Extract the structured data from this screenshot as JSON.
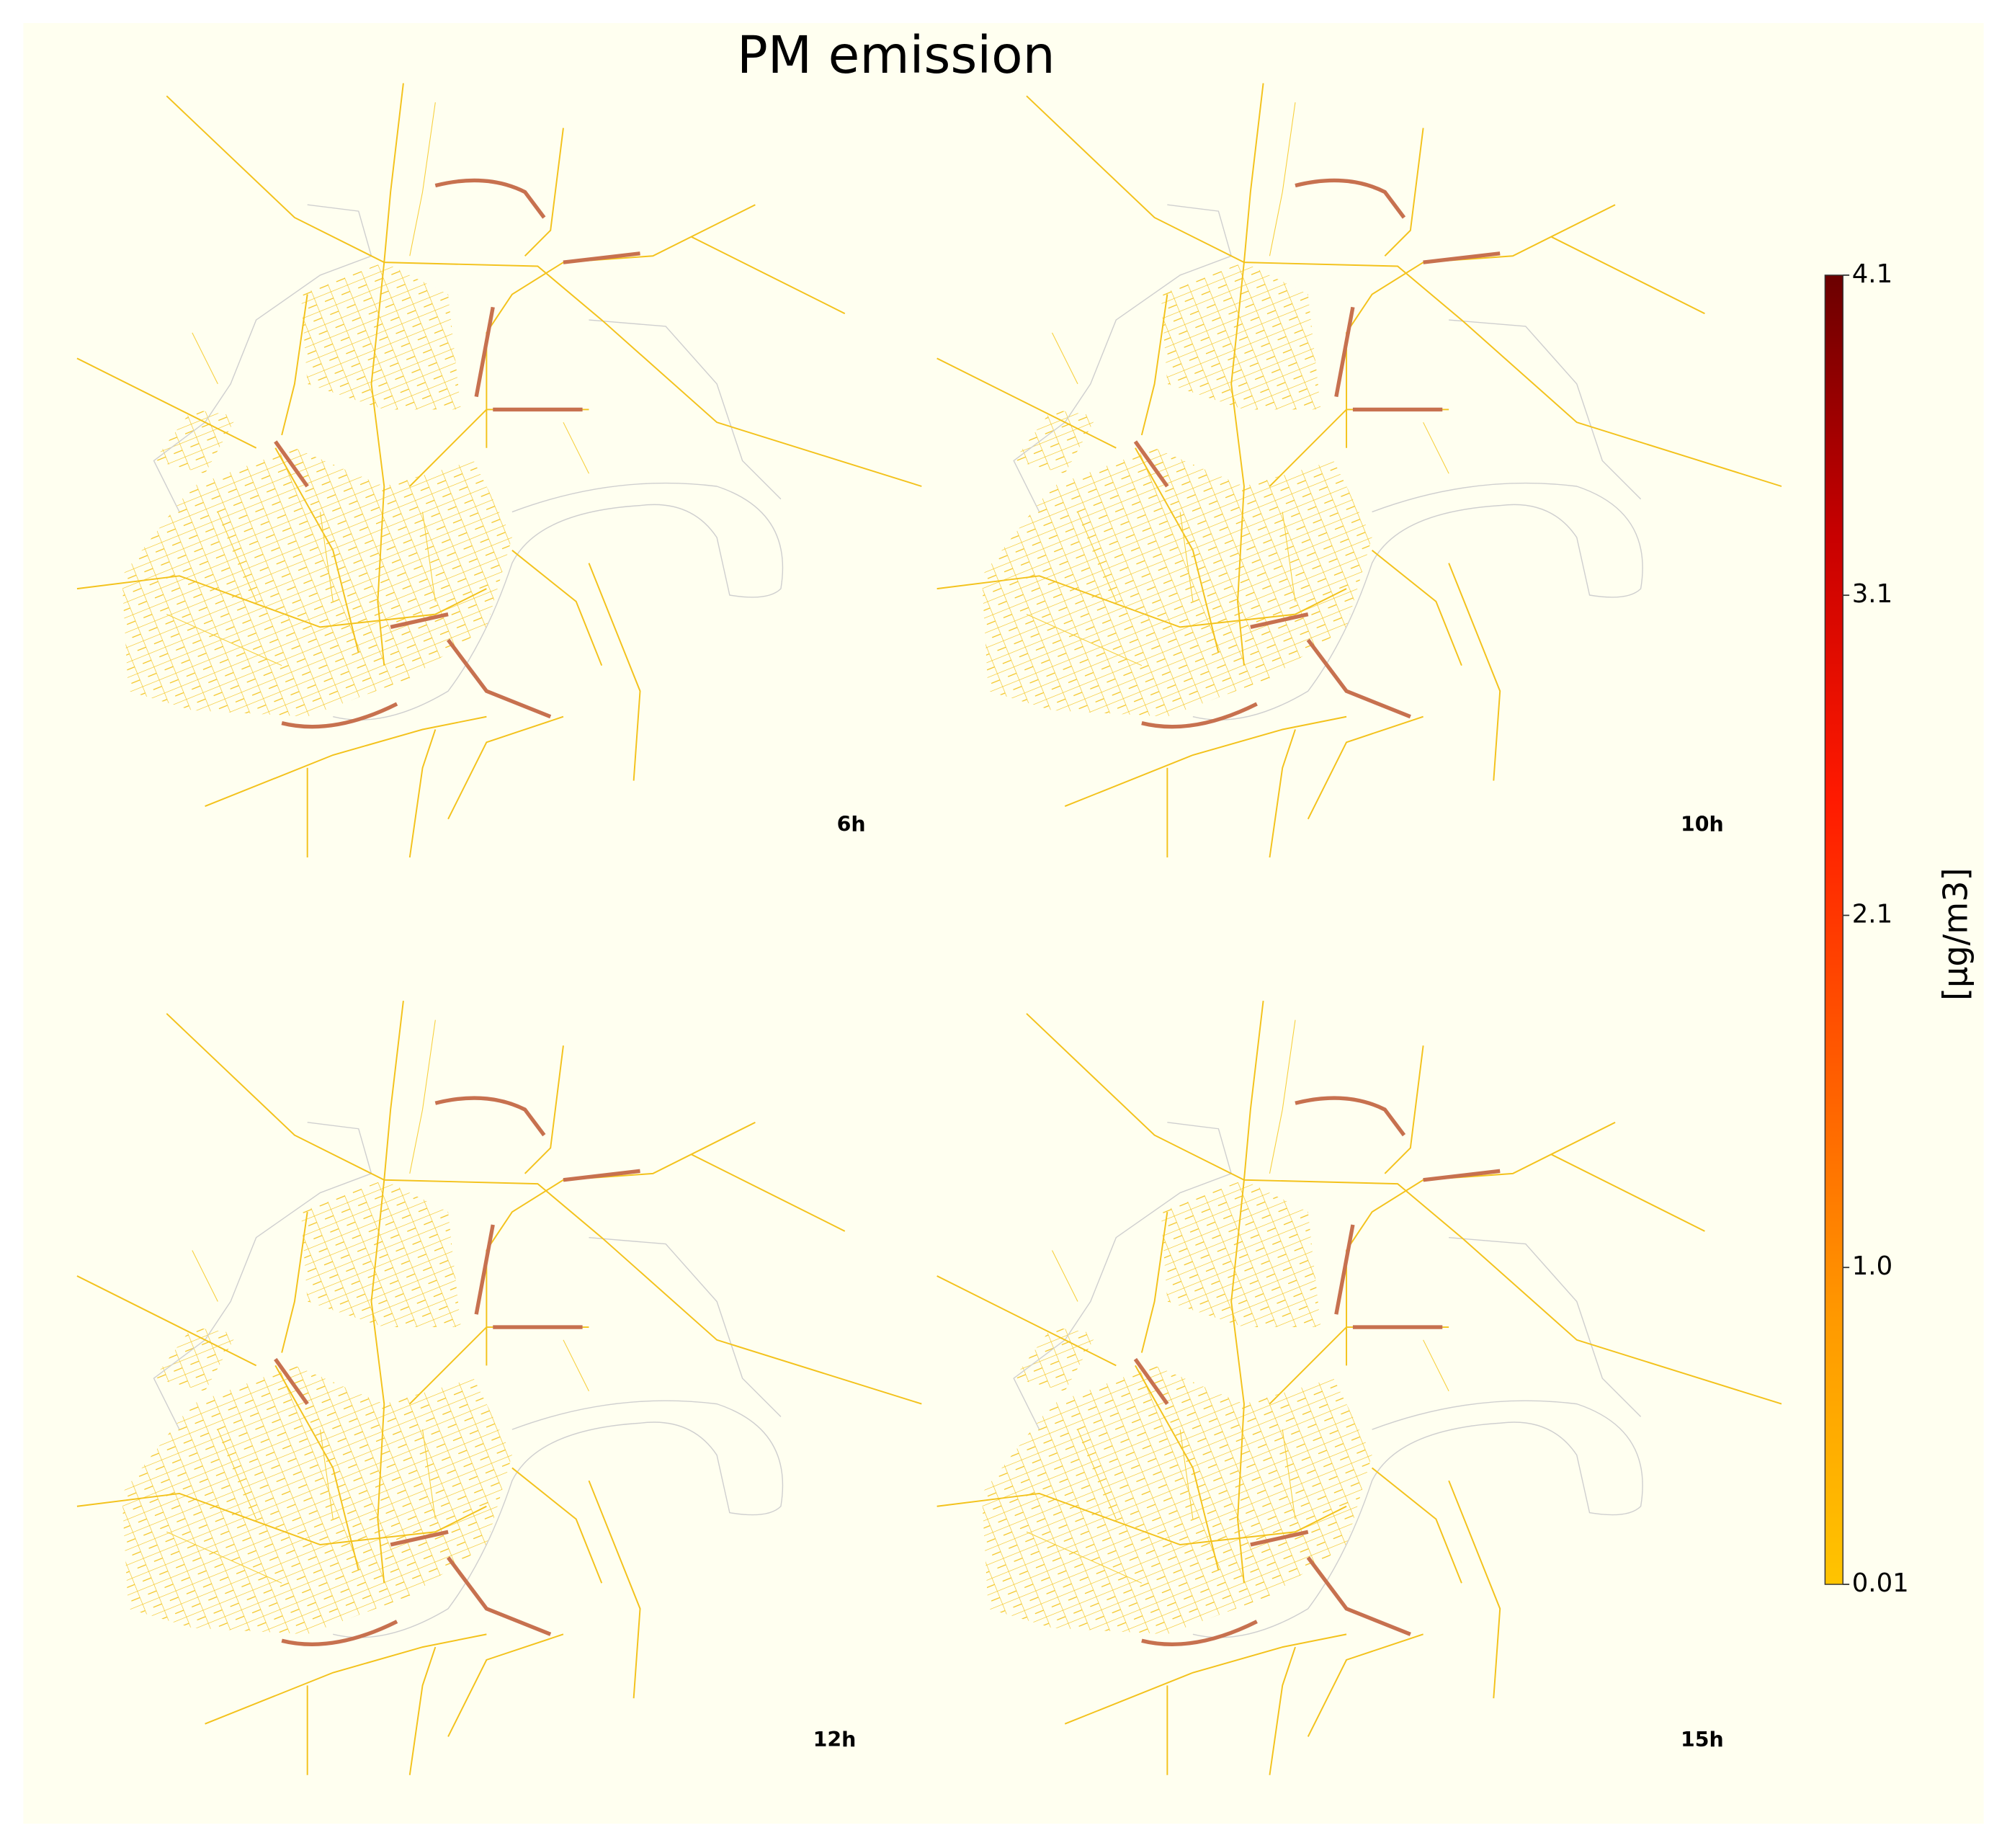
{
  "title": "PM emission",
  "panels": [
    {
      "label": "6h"
    },
    {
      "label": "10h"
    },
    {
      "label": "12h"
    },
    {
      "label": "15h"
    }
  ],
  "colorbar": {
    "label": "[µg/m3]",
    "lim": [
      0.01,
      4.1
    ],
    "ticks": [
      0.01,
      {
        "value": 1.0,
        "label": "1.0"
      },
      2.1,
      3.1,
      4.1
    ],
    "colors": [
      "#ffc400",
      "#ff9a00",
      "#ff5a00",
      "#ff1a00",
      "#c80000",
      "#6b0000"
    ]
  }
}
